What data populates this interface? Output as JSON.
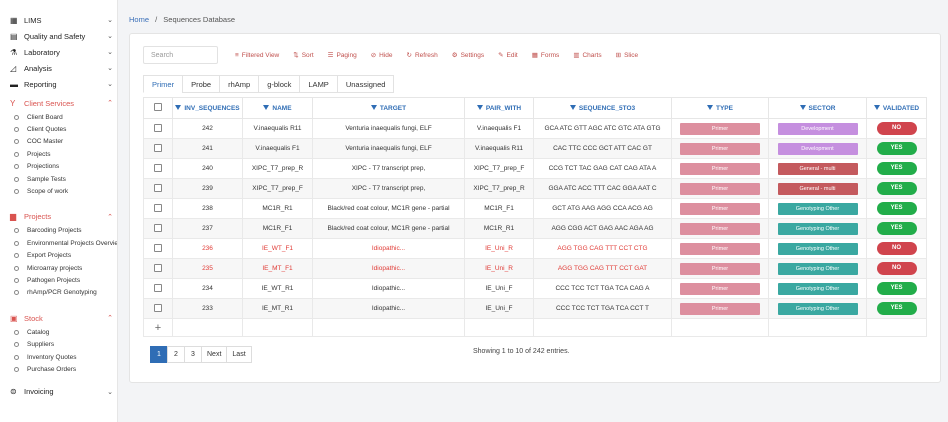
{
  "sidebar": {
    "groups": [
      {
        "label": "LIMS",
        "icon": "grid-icon"
      },
      {
        "label": "Quality and Safety",
        "icon": "clipboard-icon"
      },
      {
        "label": "Laboratory",
        "icon": "flask-icon"
      },
      {
        "label": "Analysis",
        "icon": "chart-icon"
      },
      {
        "label": "Reporting",
        "icon": "report-icon"
      },
      {
        "label": "Client Services",
        "icon": "client-icon"
      },
      {
        "label": "Projects",
        "icon": "folder-icon"
      },
      {
        "label": "Stock",
        "icon": "box-icon"
      },
      {
        "label": "Invoicing",
        "icon": "invoice-icon"
      }
    ],
    "client_services_items": [
      "Client Board",
      "Client Quotes",
      "COC Master",
      "Projects",
      "Projections",
      "Sample Tests",
      "Scope of work"
    ],
    "projects_items": [
      "Barcoding Projects",
      "Environmental Projects Overview",
      "Export Projects",
      "Microarray projects",
      "Pathogen Projects",
      "rhAmp/PCR Genotyping"
    ],
    "stock_items": [
      "Catalog",
      "Suppliers",
      "Inventory Quotes",
      "Purchase Orders"
    ]
  },
  "breadcrumb": {
    "home": "Home",
    "sep": "/",
    "current": "Sequences Database"
  },
  "toolbar": {
    "search_placeholder": "Search",
    "buttons": [
      "Filtered View",
      "Sort",
      "Paging",
      "Hide",
      "Refresh",
      "Settings",
      "Edit",
      "Forms",
      "Charts",
      "Slice"
    ]
  },
  "tabs": [
    "Primer",
    "Probe",
    "rhAmp",
    "g-block",
    "LAMP",
    "Unassigned"
  ],
  "columns": [
    "INV_SEQUENCES",
    "NAME",
    "TARGET",
    "PAIR_WITH",
    "SEQUENCE_5TO3",
    "TYPE",
    "SECTOR",
    "VALIDATED"
  ],
  "rows": [
    {
      "id": "242",
      "name": "V.inaequalis R11",
      "target": "Venturia inaequalis fungi, ELF",
      "pair": "V.inaequalis F1",
      "seq": "GCA ATC GTT AGC ATC GTC ATA GTG",
      "type": "Primer",
      "sector": "Development",
      "validated": "NO"
    },
    {
      "id": "241",
      "name": "V.inaequalis F1",
      "target": "Venturia inaequalis fungi, ELF",
      "pair": "V.inaequalis R11",
      "seq": "CAC TTC CCC GCT ATT CAC GT",
      "type": "Primer",
      "sector": "Development",
      "validated": "YES"
    },
    {
      "id": "240",
      "name": "XIPC_T7_prep_R",
      "target": "XIPC - T7 transcript prep,",
      "pair": "XIPC_T7_prep_F",
      "seq": "CCG TCT TAC GAG CAT CAG ATA A",
      "type": "Primer",
      "sector": "General - multi",
      "validated": "YES"
    },
    {
      "id": "239",
      "name": "XIPC_T7_prep_F",
      "target": "XIPC - T7 transcript prep,",
      "pair": "XIPC_T7_prep_R",
      "seq": "GGA ATC ACC TTT CAC GGA AAT C",
      "type": "Primer",
      "sector": "General - multi",
      "validated": "YES"
    },
    {
      "id": "238",
      "name": "MC1R_R1",
      "target": "Black/red coat colour, MC1R gene - partial",
      "pair": "MC1R_F1",
      "seq": "GCT ATG AAG AGG CCA ACG AG",
      "type": "Primer",
      "sector": "Genotyping Other",
      "validated": "YES"
    },
    {
      "id": "237",
      "name": "MC1R_F1",
      "target": "Black/red coat colour, MC1R gene - partial",
      "pair": "MC1R_R1",
      "seq": "AGG CGG ACT GAG AAC AGA AG",
      "type": "Primer",
      "sector": "Genotyping Other",
      "validated": "YES"
    },
    {
      "id": "236",
      "name": "IE_WT_F1",
      "target": "Idiopathic...",
      "pair": "IE_Uni_R",
      "seq": "AGG TGG CAG TTT CCT CTG",
      "type": "Primer",
      "sector": "Genotyping Other",
      "validated": "NO",
      "red": true
    },
    {
      "id": "235",
      "name": "IE_MT_F1",
      "target": "Idiopathic...",
      "pair": "IE_Uni_R",
      "seq": "AGG TGG CAG TTT CCT GAT",
      "type": "Primer",
      "sector": "Genotyping Other",
      "validated": "NO",
      "red": true
    },
    {
      "id": "234",
      "name": "IE_WT_R1",
      "target": "Idiopathic...",
      "pair": "IE_Uni_F",
      "seq": "CCC TCC TCT TGA TCA CAG A",
      "type": "Primer",
      "sector": "Genotyping Other",
      "validated": "YES"
    },
    {
      "id": "233",
      "name": "IE_MT_R1",
      "target": "Idiopathic...",
      "pair": "IE_Uni_F",
      "seq": "CCC TCC TCT TGA TCA CCT T",
      "type": "Primer",
      "sector": "Genotyping Other",
      "validated": "YES"
    }
  ],
  "pagination": {
    "pages": [
      "1",
      "2",
      "3"
    ],
    "next": "Next",
    "last": "Last"
  },
  "entries_info": "Showing 1 to 10 of 242 entries.",
  "colors": {
    "accent": "#2f6db5",
    "primer": "#dd8f9f",
    "development": "#c58fdf",
    "general": "#c45a5e",
    "genotyping": "#3aa8a1",
    "yes": "#22ad4a",
    "no": "#d0444d"
  }
}
